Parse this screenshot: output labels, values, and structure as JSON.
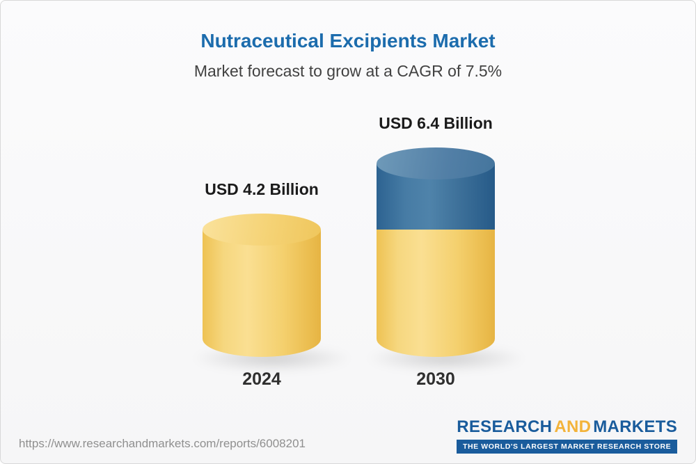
{
  "header": {
    "title": "Nutraceutical Excipients Market",
    "subtitle": "Market forecast to grow at a CAGR of 7.5%"
  },
  "chart_data": {
    "type": "bar",
    "title": "Nutraceutical Excipients Market",
    "subtitle": "Market forecast to grow at a CAGR of 7.5%",
    "cagr_percent": 7.5,
    "unit": "USD Billion",
    "categories": [
      "2024",
      "2030"
    ],
    "values": [
      4.2,
      6.4
    ],
    "value_labels": [
      "USD 4.2 Billion",
      "USD 6.4 Billion"
    ],
    "legend": "none",
    "grid": false,
    "ylim": [
      0,
      7
    ],
    "colors": {
      "title": "#1c6cad",
      "bar_base": "#f5d377",
      "bar_growth": "#3a719c",
      "label_text": "#1b1b1b"
    }
  },
  "footer": {
    "url": "https://www.researchandmarkets.com/reports/6008201",
    "logo": {
      "research": "RESEARCH",
      "and": "AND",
      "markets": "MARKETS",
      "tagline": "THE WORLD'S LARGEST MARKET RESEARCH STORE"
    }
  }
}
